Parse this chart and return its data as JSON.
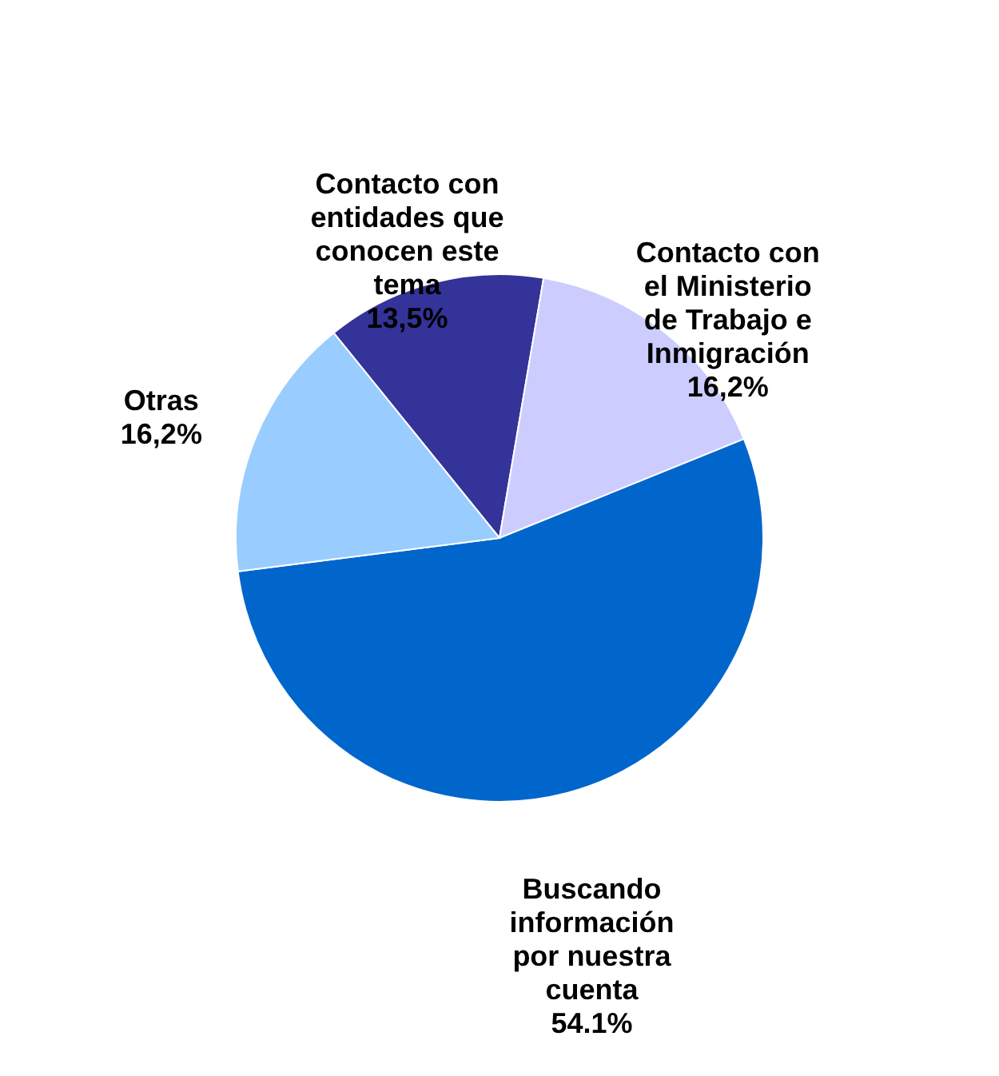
{
  "chart_data": {
    "type": "pie",
    "categories": [
      "Contacto con entidades que conocen este tema",
      "Contacto con el Ministerio de Trabajo e Inmigración",
      "Buscando información por nuestra cuenta",
      "Otras"
    ],
    "values": [
      13.5,
      16.2,
      54.1,
      16.2
    ],
    "value_labels": [
      "13,5%",
      "16,2%",
      "54.1%",
      "16,2%"
    ],
    "colors": [
      "#333399",
      "#ccccff",
      "#0066cc",
      "#99ccff"
    ],
    "legend": false
  }
}
